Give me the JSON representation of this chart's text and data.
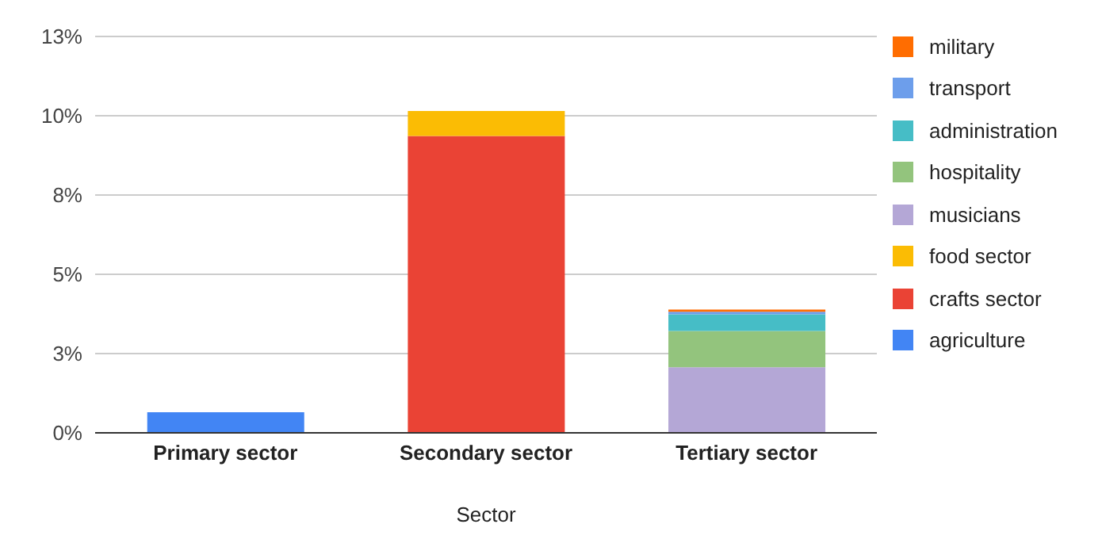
{
  "chart_data": {
    "type": "bar",
    "xlabel": "Sector",
    "categories": [
      "Primary sector",
      "Secondary sector",
      "Tertiary sector"
    ],
    "stacked": true,
    "ylim": [
      0,
      12.5
    ],
    "yticks": [
      {
        "value": 0,
        "label": "0%"
      },
      {
        "value": 2.5,
        "label": "3%"
      },
      {
        "value": 5,
        "label": "5%"
      },
      {
        "value": 7.5,
        "label": "8%"
      },
      {
        "value": 10,
        "label": "10%"
      },
      {
        "value": 12.5,
        "label": "13%"
      }
    ],
    "grid": "y",
    "legend": "right",
    "series": [
      {
        "name": "agriculture",
        "color": "#4285f4",
        "values": [
          0.65,
          null,
          null
        ]
      },
      {
        "name": "crafts sector",
        "color": "#ea4335",
        "values": [
          null,
          9.36,
          null
        ]
      },
      {
        "name": "food sector",
        "color": "#fbbc04",
        "values": [
          null,
          0.79,
          null
        ]
      },
      {
        "name": "musicians",
        "color": "#b4a7d6",
        "values": [
          null,
          null,
          2.07
        ]
      },
      {
        "name": "hospitality",
        "color": "#93c47d",
        "values": [
          null,
          null,
          1.14
        ]
      },
      {
        "name": "administration",
        "color": "#46bdc6",
        "values": [
          null,
          null,
          0.53
        ]
      },
      {
        "name": "transport",
        "color": "#6d9eeb",
        "values": [
          null,
          null,
          0.08
        ]
      },
      {
        "name": "military",
        "color": "#ff6d01",
        "values": [
          null,
          null,
          0.07
        ]
      }
    ]
  }
}
